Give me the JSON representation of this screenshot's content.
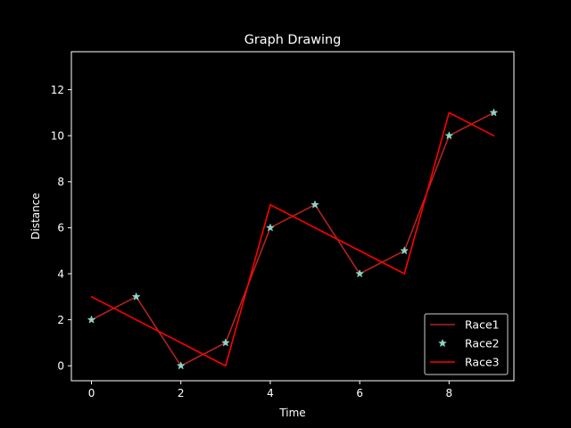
{
  "chart_data": {
    "type": "line",
    "title": "Graph Drawing",
    "xlabel": "Time",
    "ylabel": "Distance",
    "xlim": [
      -0.45,
      9.45
    ],
    "ylim": [
      -0.65,
      13.65
    ],
    "xticks": [
      0,
      2,
      4,
      6,
      8
    ],
    "yticks": [
      0,
      2,
      4,
      6,
      8,
      10,
      12
    ],
    "grid": false,
    "legend_position": "lower right",
    "background": "#000000",
    "foreground": "#ffffff",
    "series": [
      {
        "name": "Race1",
        "style": "line",
        "color": "#b22222",
        "x": [
          0,
          1,
          2,
          3,
          4,
          5,
          6,
          7,
          8,
          9
        ],
        "y": [
          2,
          3,
          0,
          1,
          6,
          7,
          4,
          5,
          10,
          11
        ]
      },
      {
        "name": "Race2",
        "style": "star-markers",
        "color": "#8dd3c7",
        "x": [
          0,
          1,
          2,
          3,
          4,
          5,
          6,
          7,
          8,
          9
        ],
        "y": [
          2,
          3,
          0,
          1,
          6,
          7,
          4,
          5,
          10,
          11
        ]
      },
      {
        "name": "Race3",
        "style": "line",
        "color": "#ff0000",
        "x": [
          0,
          3,
          4,
          7,
          8,
          9
        ],
        "y": [
          3,
          0,
          7,
          4,
          11,
          10
        ]
      }
    ]
  }
}
